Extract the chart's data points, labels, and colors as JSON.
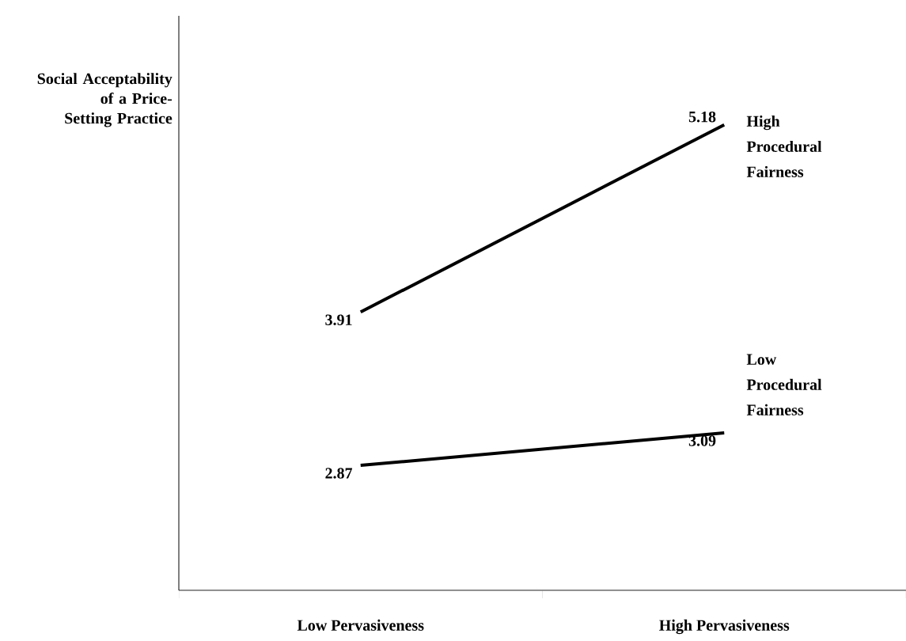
{
  "chart_data": {
    "type": "line",
    "ylabel": "Social Acceptability of a Price-Setting Practice",
    "categories": [
      "Low Pervasiveness",
      "High Pervasiveness"
    ],
    "series": [
      {
        "name": "High Procedural Fairness",
        "color": "#000000",
        "values": [
          3.91,
          5.18
        ]
      },
      {
        "name": "Low Procedural Fairness",
        "color": "#000000",
        "values": [
          2.87,
          3.09
        ]
      }
    ],
    "data_labels": true
  }
}
